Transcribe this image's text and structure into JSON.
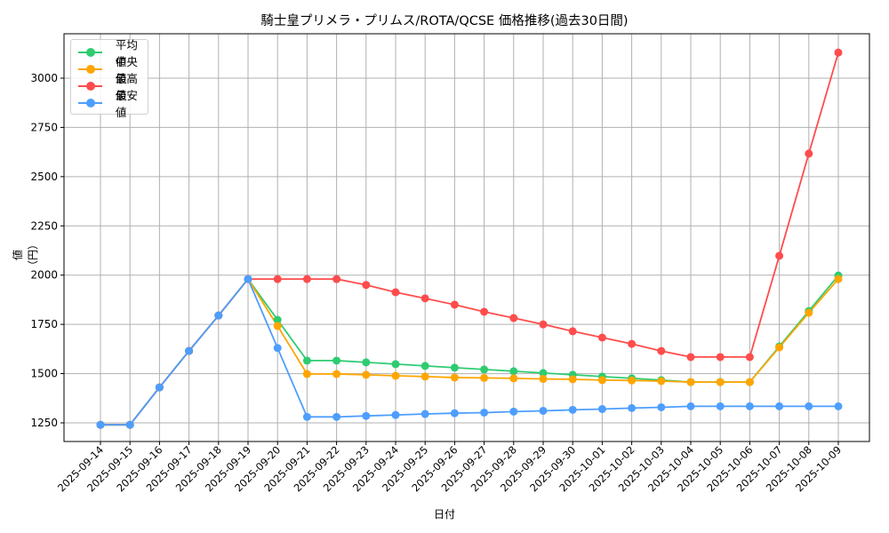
{
  "chart_data": {
    "type": "line",
    "title": "騎士皇プリメラ・プリムス/ROTA/QCSE 価格推移(過去30日間)",
    "xlabel": "日付",
    "ylabel": "値（円）",
    "ylim": [
      1150,
      3220
    ],
    "yticks": [
      1250,
      1500,
      1750,
      2000,
      2250,
      2500,
      2750,
      3000
    ],
    "grid": true,
    "legend_position": "upper left",
    "categories": [
      "2025-09-14",
      "2025-09-15",
      "2025-09-16",
      "2025-09-17",
      "2025-09-18",
      "2025-09-19",
      "2025-09-20",
      "2025-09-21",
      "2025-09-22",
      "2025-09-23",
      "2025-09-24",
      "2025-09-25",
      "2025-09-26",
      "2025-09-27",
      "2025-09-28",
      "2025-09-29",
      "2025-09-30",
      "2025-10-01",
      "2025-10-02",
      "2025-10-03",
      "2025-10-04",
      "2025-10-05",
      "2025-10-06",
      "2025-10-07",
      "2025-10-08",
      "2025-10-09"
    ],
    "series": [
      {
        "name": "平均値",
        "color": "#2ecc71",
        "values": [
          1240,
          1240,
          1430,
          1615,
          1795,
          1980,
          1773,
          1566,
          1566,
          1557,
          1548,
          1539,
          1530,
          1521,
          1512,
          1503,
          1494,
          1485,
          1476,
          1467,
          1457,
          1457,
          1457,
          1638,
          1818,
          1998
        ]
      },
      {
        "name": "中央値",
        "color": "#ffa500",
        "values": [
          1240,
          1240,
          1430,
          1615,
          1795,
          1980,
          1742,
          1498,
          1498,
          1494,
          1489,
          1485,
          1480,
          1478,
          1476,
          1473,
          1471,
          1467,
          1465,
          1462,
          1457,
          1457,
          1457,
          1633,
          1809,
          1980
        ]
      },
      {
        "name": "最高値",
        "color": "#ff4c4c",
        "values": [
          1240,
          1240,
          1430,
          1615,
          1795,
          1980,
          1980,
          1980,
          1980,
          1950,
          1913,
          1882,
          1850,
          1814,
          1782,
          1750,
          1715,
          1683,
          1651,
          1615,
          1584,
          1584,
          1584,
          2098,
          2617,
          3130
        ]
      },
      {
        "name": "最安値",
        "color": "#4d9eff",
        "values": [
          1240,
          1240,
          1430,
          1615,
          1795,
          1980,
          1630,
          1280,
          1280,
          1285,
          1290,
          1295,
          1299,
          1302,
          1307,
          1311,
          1316,
          1320,
          1325,
          1329,
          1334,
          1334,
          1334,
          1334,
          1334,
          1334
        ]
      }
    ]
  }
}
